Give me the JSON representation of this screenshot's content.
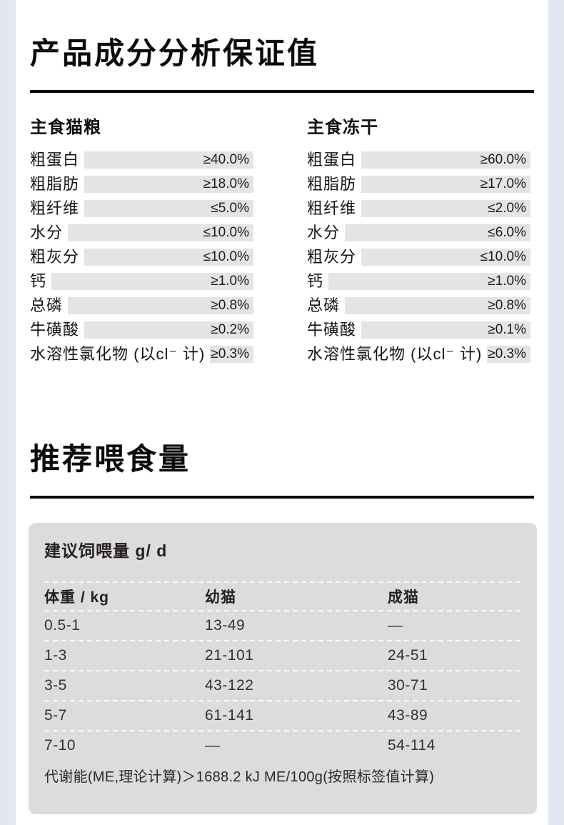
{
  "page": {
    "background_color": "#e3e7f1",
    "sheet_color": "#ffffff",
    "bar_color": "#e4e4e6",
    "card_color": "#dcdcde"
  },
  "analysis": {
    "title": "产品成分分析保证值",
    "columns": [
      {
        "subtitle": "主食猫粮",
        "rows": [
          {
            "label": "粗蛋白",
            "value": "≥40.0%"
          },
          {
            "label": "粗脂肪",
            "value": "≥18.0%"
          },
          {
            "label": "粗纤维",
            "value": "≤5.0%"
          },
          {
            "label": "水分",
            "value": "≤10.0%"
          },
          {
            "label": "粗灰分",
            "value": "≤10.0%"
          },
          {
            "label": "钙",
            "value": "≥1.0%"
          },
          {
            "label": "总磷",
            "value": "≥0.8%"
          },
          {
            "label": "牛磺酸",
            "value": "≥0.2%"
          },
          {
            "label": "水溶性氯化物 (以cl⁻ 计)",
            "value": "≥0.3%"
          }
        ]
      },
      {
        "subtitle": "主食冻干",
        "rows": [
          {
            "label": "粗蛋白",
            "value": "≥60.0%"
          },
          {
            "label": "粗脂肪",
            "value": "≥17.0%"
          },
          {
            "label": "粗纤维",
            "value": "≤2.0%"
          },
          {
            "label": "水分",
            "value": "≤6.0%"
          },
          {
            "label": "粗灰分",
            "value": "≤10.0%"
          },
          {
            "label": "钙",
            "value": "≥1.0%"
          },
          {
            "label": "总磷",
            "value": "≥0.8%"
          },
          {
            "label": "牛磺酸",
            "value": "≥0.1%"
          },
          {
            "label": "水溶性氯化物 (以cl⁻ 计)",
            "value": "≥0.3%"
          }
        ]
      }
    ]
  },
  "feeding": {
    "title": "推荐喂食量",
    "card": {
      "heading": "建议饲喂量 g/ d",
      "table": {
        "headers": [
          "体重 / kg",
          "幼猫",
          "成猫"
        ],
        "rows": [
          [
            "0.5-1",
            "13-49",
            "—"
          ],
          [
            "1-3",
            "21-101",
            "24-51"
          ],
          [
            "3-5",
            "43-122",
            "30-71"
          ],
          [
            "5-7",
            "61-141",
            "43-89"
          ],
          [
            "7-10",
            "—",
            "54-114"
          ]
        ]
      },
      "note": "代谢能(ME,理论计算)＞1688.2 kJ ME/100g(按照标签值计算)"
    }
  }
}
